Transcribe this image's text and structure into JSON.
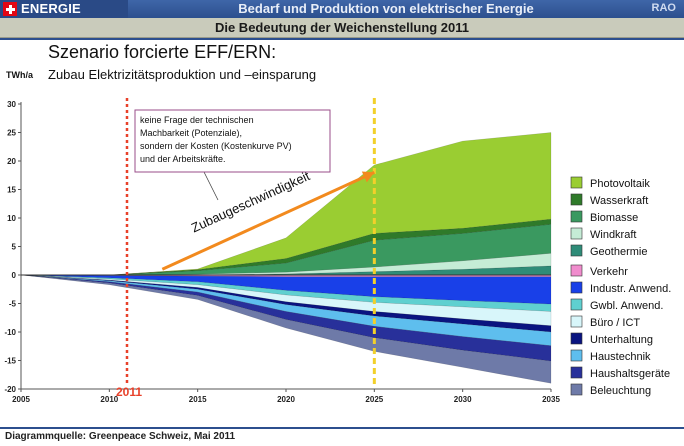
{
  "header": {
    "logo_text": "ENERGIE SCHWEIZ",
    "title": "Bedarf und Produktion von elektrischer Energie",
    "badge": "RAO",
    "subtitle": "Die Bedeutung der Weichenstellung 2011"
  },
  "slide": {
    "title": "Szenario forcierte EFF/ERN:",
    "subtitle": "Zubau Elektrizitätsproduktion und –einsparung",
    "source": "Diagrammquelle: Greenpeace Schweiz, Mai 2011"
  },
  "chart_data": {
    "type": "area",
    "ylabel": "TWh/a",
    "x": [
      2005,
      2010,
      2015,
      2020,
      2025,
      2030,
      2035
    ],
    "xlim": [
      2005,
      2035
    ],
    "ylim": [
      -20,
      30
    ],
    "yticks": [
      30,
      25,
      20,
      15,
      10,
      5,
      0,
      -5,
      -10,
      -15,
      -20
    ],
    "grid": false,
    "legend_position": "right",
    "production_series": [
      {
        "name": "Geothermie",
        "color": "#2f8c78",
        "values": [
          0,
          0,
          0.05,
          0.2,
          0.6,
          1.0,
          1.6
        ]
      },
      {
        "name": "Windkraft",
        "color": "#c5ecd6",
        "values": [
          0,
          0,
          0.1,
          0.3,
          0.8,
          1.5,
          2.2
        ]
      },
      {
        "name": "Biomasse",
        "color": "#3a9960",
        "values": [
          0,
          0,
          0.6,
          1.6,
          4.7,
          4.8,
          5.1
        ]
      },
      {
        "name": "Wasserkraft",
        "color": "#2f7a2a",
        "values": [
          0,
          0,
          0.2,
          0.8,
          1.2,
          0.9,
          0.9
        ]
      },
      {
        "name": "Photovoltaik",
        "color": "#9acd32",
        "values": [
          0,
          0,
          0.1,
          3.6,
          12.0,
          15.3,
          15.2
        ]
      }
    ],
    "savings_series": [
      {
        "name": "Verkehr",
        "color": "#f08ccd",
        "values": [
          0,
          -0.1,
          -0.2,
          -0.3,
          -0.3,
          -0.3,
          -0.3
        ]
      },
      {
        "name": "Industr. Anwend.",
        "color": "#1940e8",
        "values": [
          0,
          -0.4,
          -1.0,
          -2.4,
          -3.5,
          -4.2,
          -4.8
        ]
      },
      {
        "name": "Gwbl. Anwend.",
        "color": "#5fd0d0",
        "values": [
          0,
          -0.2,
          -0.5,
          -0.8,
          -1.0,
          -1.1,
          -1.3
        ]
      },
      {
        "name": "Büro / ICT",
        "color": "#d8f6fa",
        "values": [
          0,
          -0.2,
          -0.5,
          -1.2,
          -1.6,
          -2.1,
          -2.5
        ]
      },
      {
        "name": "Unterhaltung",
        "color": "#0a1480",
        "values": [
          0,
          -0.1,
          -0.3,
          -0.5,
          -0.8,
          -0.9,
          -1.1
        ]
      },
      {
        "name": "Haustechnik",
        "color": "#5ebeee",
        "values": [
          0,
          -0.2,
          -0.5,
          -1.2,
          -1.8,
          -2.2,
          -2.4
        ]
      },
      {
        "name": "Haushaltsgeräte",
        "color": "#28309a",
        "values": [
          0,
          -0.2,
          -0.6,
          -1.4,
          -2.0,
          -2.4,
          -2.7
        ]
      },
      {
        "name": "Beleuchtung",
        "color": "#6e7aa8",
        "values": [
          0,
          -0.3,
          -0.7,
          -1.5,
          -2.4,
          -3.0,
          -3.9
        ]
      }
    ],
    "markers": [
      {
        "label": "2011",
        "x": 2011,
        "color": "#e8412a",
        "style": "dotted"
      },
      {
        "label": "",
        "x": 2025,
        "color": "#f2d02a",
        "style": "dashed"
      }
    ],
    "annotations": {
      "note_lines": [
        "keine Frage der technischen",
        "Machbarkeit (Potenziale),",
        "sondern der Kosten (Kostenkurve PV)",
        "und der Arbeitskräfte."
      ],
      "arrow_label": "Zubaugeschwindigkeit",
      "arrow_from": [
        2013,
        1
      ],
      "arrow_to": [
        2025,
        18
      ]
    }
  }
}
